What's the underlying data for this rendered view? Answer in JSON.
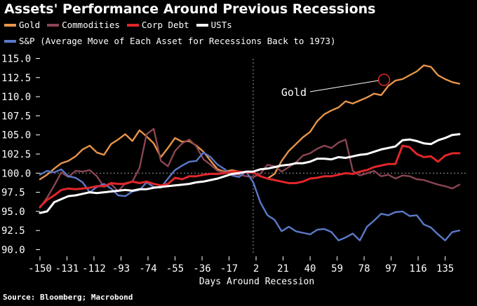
{
  "header": {
    "title": "Assets' Performance Around Previous Recessions",
    "source": "Source: Bloomberg; Macrobond"
  },
  "legend": {
    "row1": [
      {
        "label": "Gold",
        "color": "#e8954a"
      },
      {
        "label": "Commodities",
        "color": "#8b4552"
      },
      {
        "label": "Corp Debt",
        "color": "#e0262a"
      },
      {
        "label": "USTs",
        "color": "#ffffff"
      }
    ],
    "row2": [
      {
        "label": "S&P (Average Move of Each Asset for Recessions Back to 1973)",
        "color": "#5b79c9"
      }
    ]
  },
  "chart_data": {
    "type": "line",
    "title": "Assets' Performance Around Previous Recessions",
    "xlabel": "Days Around Recession",
    "ylabel": "",
    "xlim": [
      -150,
      150
    ],
    "ylim": [
      89.5,
      115.5
    ],
    "x_ticks": [
      -150,
      -131,
      -112,
      -93,
      -74,
      -55,
      -36,
      -17,
      2,
      21,
      40,
      59,
      78,
      97,
      116,
      135
    ],
    "y_ticks": [
      90.0,
      92.5,
      95.0,
      97.5,
      100.0,
      102.5,
      105.0,
      107.5,
      110.0,
      112.5,
      115.0
    ],
    "y_tick_labels": [
      "90.0",
      "92.5",
      "95.0",
      "97.5",
      "100.0",
      "102.5",
      "105.0",
      "107.5",
      "110.0",
      "112.5",
      "115.0"
    ],
    "reference_line_y": 100,
    "recession_marker_x": 0,
    "annotation": {
      "text": "Gold",
      "x": 92,
      "y": 112.2
    },
    "series": [
      {
        "name": "Gold",
        "color": "#e8954a",
        "x": [
          -150,
          -145,
          -140,
          -135,
          -130,
          -125,
          -120,
          -115,
          -110,
          -105,
          -100,
          -95,
          -90,
          -85,
          -80,
          -75,
          -70,
          -65,
          -60,
          -55,
          -50,
          -45,
          -40,
          -35,
          -30,
          -25,
          -20,
          -15,
          -10,
          -5,
          0,
          5,
          10,
          15,
          20,
          25,
          30,
          35,
          40,
          45,
          50,
          55,
          60,
          65,
          70,
          75,
          80,
          85,
          90,
          95,
          100,
          105,
          110,
          115,
          120,
          125,
          130,
          135,
          140,
          145
        ],
        "y": [
          99.2,
          99.8,
          100.6,
          101.3,
          101.6,
          102.2,
          103.1,
          103.6,
          102.7,
          102.4,
          103.8,
          104.4,
          105.1,
          104.2,
          105.6,
          104.8,
          103.9,
          102.1,
          103.3,
          104.6,
          104.1,
          104.2,
          103.6,
          102.8,
          101.6,
          100.5,
          100.2,
          100.4,
          100.2,
          100.1,
          100.1,
          99.6,
          99.3,
          99.9,
          101.6,
          102.9,
          103.8,
          104.7,
          105.4,
          106.8,
          107.7,
          108.2,
          108.6,
          109.4,
          109.1,
          109.5,
          109.9,
          110.4,
          110.2,
          111.4,
          112.1,
          112.3,
          112.8,
          113.3,
          114.1,
          113.9,
          112.8,
          112.3,
          111.9,
          111.7
        ]
      },
      {
        "name": "Commodities",
        "color": "#8b4552",
        "x": [
          -150,
          -145,
          -140,
          -135,
          -130,
          -125,
          -120,
          -115,
          -110,
          -105,
          -100,
          -95,
          -90,
          -85,
          -80,
          -75,
          -70,
          -65,
          -60,
          -55,
          -50,
          -45,
          -40,
          -35,
          -30,
          -25,
          -20,
          -15,
          -10,
          -5,
          0,
          5,
          10,
          15,
          20,
          25,
          30,
          35,
          40,
          45,
          50,
          55,
          60,
          65,
          70,
          75,
          80,
          85,
          90,
          95,
          100,
          105,
          110,
          115,
          120,
          125,
          130,
          135,
          140,
          145
        ],
        "y": [
          95.5,
          96.8,
          98.4,
          100.1,
          99.5,
          100.3,
          100.2,
          100.4,
          99.6,
          98.2,
          98.6,
          97.6,
          98.7,
          98.9,
          100.7,
          105.1,
          105.8,
          101.6,
          100.9,
          102.9,
          103.9,
          104.4,
          103.5,
          101.8,
          101.1,
          100.3,
          100.1,
          99.9,
          99.8,
          99.6,
          99.5,
          99.9,
          101.1,
          100.9,
          100.2,
          100.8,
          101.4,
          102.3,
          102.6,
          103.2,
          103.6,
          103.3,
          104.0,
          104.4,
          100.3,
          99.7,
          100.0,
          100.3,
          99.6,
          99.8,
          99.3,
          99.7,
          99.6,
          99.2,
          99.1,
          98.8,
          98.5,
          98.3,
          98.0,
          98.5
        ]
      },
      {
        "name": "Corp Debt",
        "color": "#e0262a",
        "x": [
          -150,
          -145,
          -140,
          -135,
          -130,
          -125,
          -120,
          -115,
          -110,
          -105,
          -100,
          -95,
          -90,
          -85,
          -80,
          -75,
          -70,
          -65,
          -60,
          -55,
          -50,
          -45,
          -40,
          -35,
          -30,
          -25,
          -20,
          -15,
          -10,
          -5,
          0,
          5,
          10,
          15,
          20,
          25,
          30,
          35,
          40,
          45,
          50,
          55,
          60,
          65,
          70,
          75,
          80,
          85,
          90,
          95,
          100,
          105,
          110,
          115,
          120,
          125,
          130,
          135,
          140,
          145
        ],
        "y": [
          95.6,
          96.5,
          97.1,
          97.8,
          98.0,
          97.9,
          98.0,
          98.1,
          98.3,
          98.3,
          98.7,
          98.6,
          98.6,
          98.9,
          98.7,
          98.9,
          98.6,
          98.4,
          98.6,
          99.4,
          99.2,
          99.6,
          99.6,
          99.8,
          99.9,
          99.9,
          100.0,
          100.2,
          100.2,
          100.1,
          100.1,
          99.6,
          99.3,
          99.1,
          98.9,
          98.7,
          98.7,
          98.9,
          99.3,
          99.4,
          99.6,
          99.6,
          99.8,
          100.0,
          99.9,
          100.2,
          100.4,
          100.8,
          101.0,
          101.2,
          101.2,
          103.6,
          103.4,
          102.5,
          102.1,
          102.2,
          101.5,
          102.3,
          102.6,
          102.6
        ]
      },
      {
        "name": "USTs",
        "color": "#ffffff",
        "x": [
          -150,
          -145,
          -140,
          -135,
          -130,
          -125,
          -120,
          -115,
          -110,
          -105,
          -100,
          -95,
          -90,
          -85,
          -80,
          -75,
          -70,
          -65,
          -60,
          -55,
          -50,
          -45,
          -40,
          -35,
          -30,
          -25,
          -20,
          -15,
          -10,
          -5,
          0,
          5,
          10,
          15,
          20,
          25,
          30,
          35,
          40,
          45,
          50,
          55,
          60,
          65,
          70,
          75,
          80,
          85,
          90,
          95,
          100,
          105,
          110,
          115,
          120,
          125,
          130,
          135,
          140,
          145
        ],
        "y": [
          94.8,
          95.0,
          96.2,
          96.6,
          97.0,
          97.1,
          97.3,
          97.5,
          97.4,
          97.5,
          97.6,
          97.7,
          97.8,
          97.7,
          97.9,
          97.9,
          98.1,
          98.2,
          98.3,
          98.4,
          98.5,
          98.6,
          98.8,
          98.9,
          99.1,
          99.3,
          99.6,
          99.9,
          100.0,
          100.2,
          100.2,
          100.5,
          100.6,
          100.8,
          101.0,
          101.1,
          101.3,
          101.3,
          101.5,
          101.9,
          101.9,
          101.8,
          102.1,
          102.0,
          102.2,
          102.4,
          102.5,
          102.8,
          103.1,
          103.3,
          103.5,
          104.3,
          104.4,
          104.2,
          103.9,
          103.8,
          104.3,
          104.6,
          105.0,
          105.1
        ]
      },
      {
        "name": "S&P",
        "color": "#5b79c9",
        "x": [
          -150,
          -145,
          -140,
          -135,
          -130,
          -125,
          -120,
          -115,
          -110,
          -105,
          -100,
          -95,
          -90,
          -85,
          -80,
          -75,
          -70,
          -65,
          -60,
          -55,
          -50,
          -45,
          -40,
          -35,
          -30,
          -25,
          -20,
          -15,
          -10,
          -5,
          0,
          5,
          10,
          15,
          20,
          25,
          30,
          35,
          40,
          45,
          50,
          55,
          60,
          65,
          70,
          75,
          80,
          85,
          90,
          95,
          100,
          105,
          110,
          115,
          120,
          125,
          130,
          135,
          140,
          145
        ],
        "y": [
          99.8,
          100.3,
          100.1,
          100.5,
          99.6,
          99.4,
          98.8,
          97.5,
          98.2,
          98.6,
          98.0,
          97.1,
          97.0,
          97.6,
          97.8,
          98.8,
          98.2,
          98.1,
          99.3,
          100.4,
          101.0,
          101.5,
          101.6,
          102.7,
          102.1,
          101.1,
          100.5,
          99.7,
          99.5,
          100.2,
          98.8,
          96.2,
          94.5,
          93.9,
          92.4,
          93.0,
          92.4,
          92.2,
          92.0,
          92.6,
          92.7,
          92.3,
          91.2,
          91.6,
          92.1,
          91.2,
          93.0,
          93.8,
          94.7,
          94.5,
          94.9,
          95.0,
          94.4,
          94.5,
          93.3,
          92.9,
          92.0,
          91.2,
          92.3,
          92.5
        ]
      }
    ]
  }
}
